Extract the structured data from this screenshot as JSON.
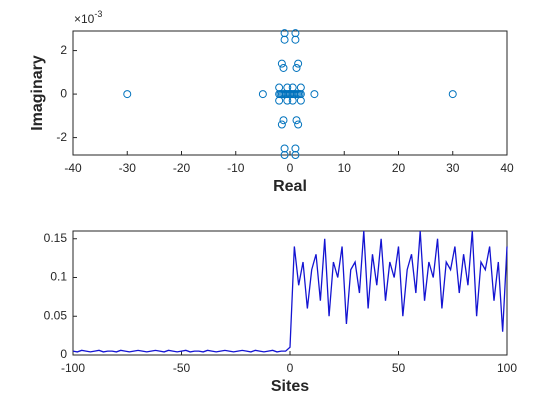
{
  "chart_data": [
    {
      "type": "scatter",
      "xlabel": "Real",
      "ylabel": "Imaginary",
      "color": "#0072bd",
      "y_exponent": {
        "base": "×10",
        "power": "-3"
      },
      "x": [
        -30,
        30,
        -5,
        4.5,
        -1,
        1,
        -1,
        1,
        -1,
        1,
        -1,
        1,
        -1.5,
        1.5,
        -1.2,
        1.2,
        -1.5,
        1.5,
        -1.2,
        1.2,
        -2,
        2,
        -0.5,
        0.5,
        -2,
        2,
        -0.5,
        0.5,
        -2,
        -1.75,
        -1.5,
        -1.25,
        -1,
        -0.75,
        -0.5,
        -0.25,
        0,
        0.25,
        0.5,
        0.75,
        1,
        1.25,
        1.5,
        1.75,
        2
      ],
      "y": [
        0,
        0,
        0,
        0,
        0.0028,
        0.0028,
        0.0025,
        0.0025,
        -0.0028,
        -0.0028,
        -0.0025,
        -0.0025,
        0.0014,
        0.0014,
        0.0012,
        0.0012,
        -0.0014,
        -0.0014,
        -0.0012,
        -0.0012,
        0.0003,
        0.0003,
        0.0003,
        0.0003,
        -0.0003,
        -0.0003,
        -0.0003,
        -0.0003,
        0,
        0,
        0,
        0,
        0,
        0,
        0,
        0,
        0,
        0,
        0,
        0,
        0,
        0,
        0,
        0,
        0
      ],
      "xlim": [
        -40,
        40
      ],
      "xticks": [
        -40,
        -30,
        -20,
        -10,
        0,
        10,
        20,
        30,
        40
      ],
      "ylim": [
        -0.0028,
        0.0029
      ],
      "yticks": [
        {
          "value": -0.002,
          "label": "-2"
        },
        {
          "value": 0,
          "label": "0"
        },
        {
          "value": 0.002,
          "label": "2"
        }
      ]
    },
    {
      "type": "line",
      "xlabel": "Sites",
      "color": "#1414d2",
      "x": [
        -100,
        -98,
        -96,
        -94,
        -92,
        -90,
        -88,
        -86,
        -84,
        -82,
        -80,
        -78,
        -76,
        -74,
        -72,
        -70,
        -68,
        -66,
        -64,
        -62,
        -60,
        -58,
        -56,
        -54,
        -52,
        -50,
        -48,
        -46,
        -44,
        -42,
        -40,
        -38,
        -36,
        -34,
        -32,
        -30,
        -28,
        -26,
        -24,
        -22,
        -20,
        -18,
        -16,
        -14,
        -12,
        -10,
        -8,
        -6,
        -4,
        -2,
        0,
        2,
        4,
        6,
        8,
        10,
        12,
        14,
        16,
        18,
        20,
        22,
        24,
        26,
        28,
        30,
        32,
        34,
        36,
        38,
        40,
        42,
        44,
        46,
        48,
        50,
        52,
        54,
        56,
        58,
        60,
        62,
        64,
        66,
        68,
        70,
        72,
        74,
        76,
        78,
        80,
        82,
        84,
        86,
        88,
        90,
        92,
        94,
        96,
        98,
        100
      ],
      "values": [
        0.005,
        0.004,
        0.006,
        0.005,
        0.004,
        0.005,
        0.006,
        0.004,
        0.005,
        0.005,
        0.004,
        0.006,
        0.005,
        0.004,
        0.005,
        0.006,
        0.005,
        0.004,
        0.005,
        0.006,
        0.005,
        0.004,
        0.006,
        0.005,
        0.004,
        0.005,
        0.006,
        0.004,
        0.005,
        0.005,
        0.004,
        0.006,
        0.005,
        0.004,
        0.005,
        0.006,
        0.005,
        0.004,
        0.005,
        0.006,
        0.005,
        0.004,
        0.006,
        0.005,
        0.004,
        0.005,
        0.006,
        0.004,
        0.005,
        0.005,
        0.01,
        0.14,
        0.09,
        0.12,
        0.06,
        0.11,
        0.13,
        0.07,
        0.15,
        0.05,
        0.12,
        0.1,
        0.14,
        0.04,
        0.11,
        0.12,
        0.08,
        0.16,
        0.06,
        0.13,
        0.09,
        0.15,
        0.07,
        0.12,
        0.1,
        0.14,
        0.05,
        0.11,
        0.13,
        0.08,
        0.16,
        0.07,
        0.12,
        0.1,
        0.15,
        0.06,
        0.12,
        0.11,
        0.14,
        0.08,
        0.13,
        0.09,
        0.16,
        0.05,
        0.12,
        0.11,
        0.14,
        0.07,
        0.12,
        0.03,
        0.14
      ],
      "xlim": [
        -100,
        100
      ],
      "xticks": [
        -100,
        -50,
        0,
        50,
        100
      ],
      "ylim": [
        0,
        0.16
      ],
      "yticks": [
        0,
        0.05,
        0.1,
        0.15
      ]
    }
  ]
}
